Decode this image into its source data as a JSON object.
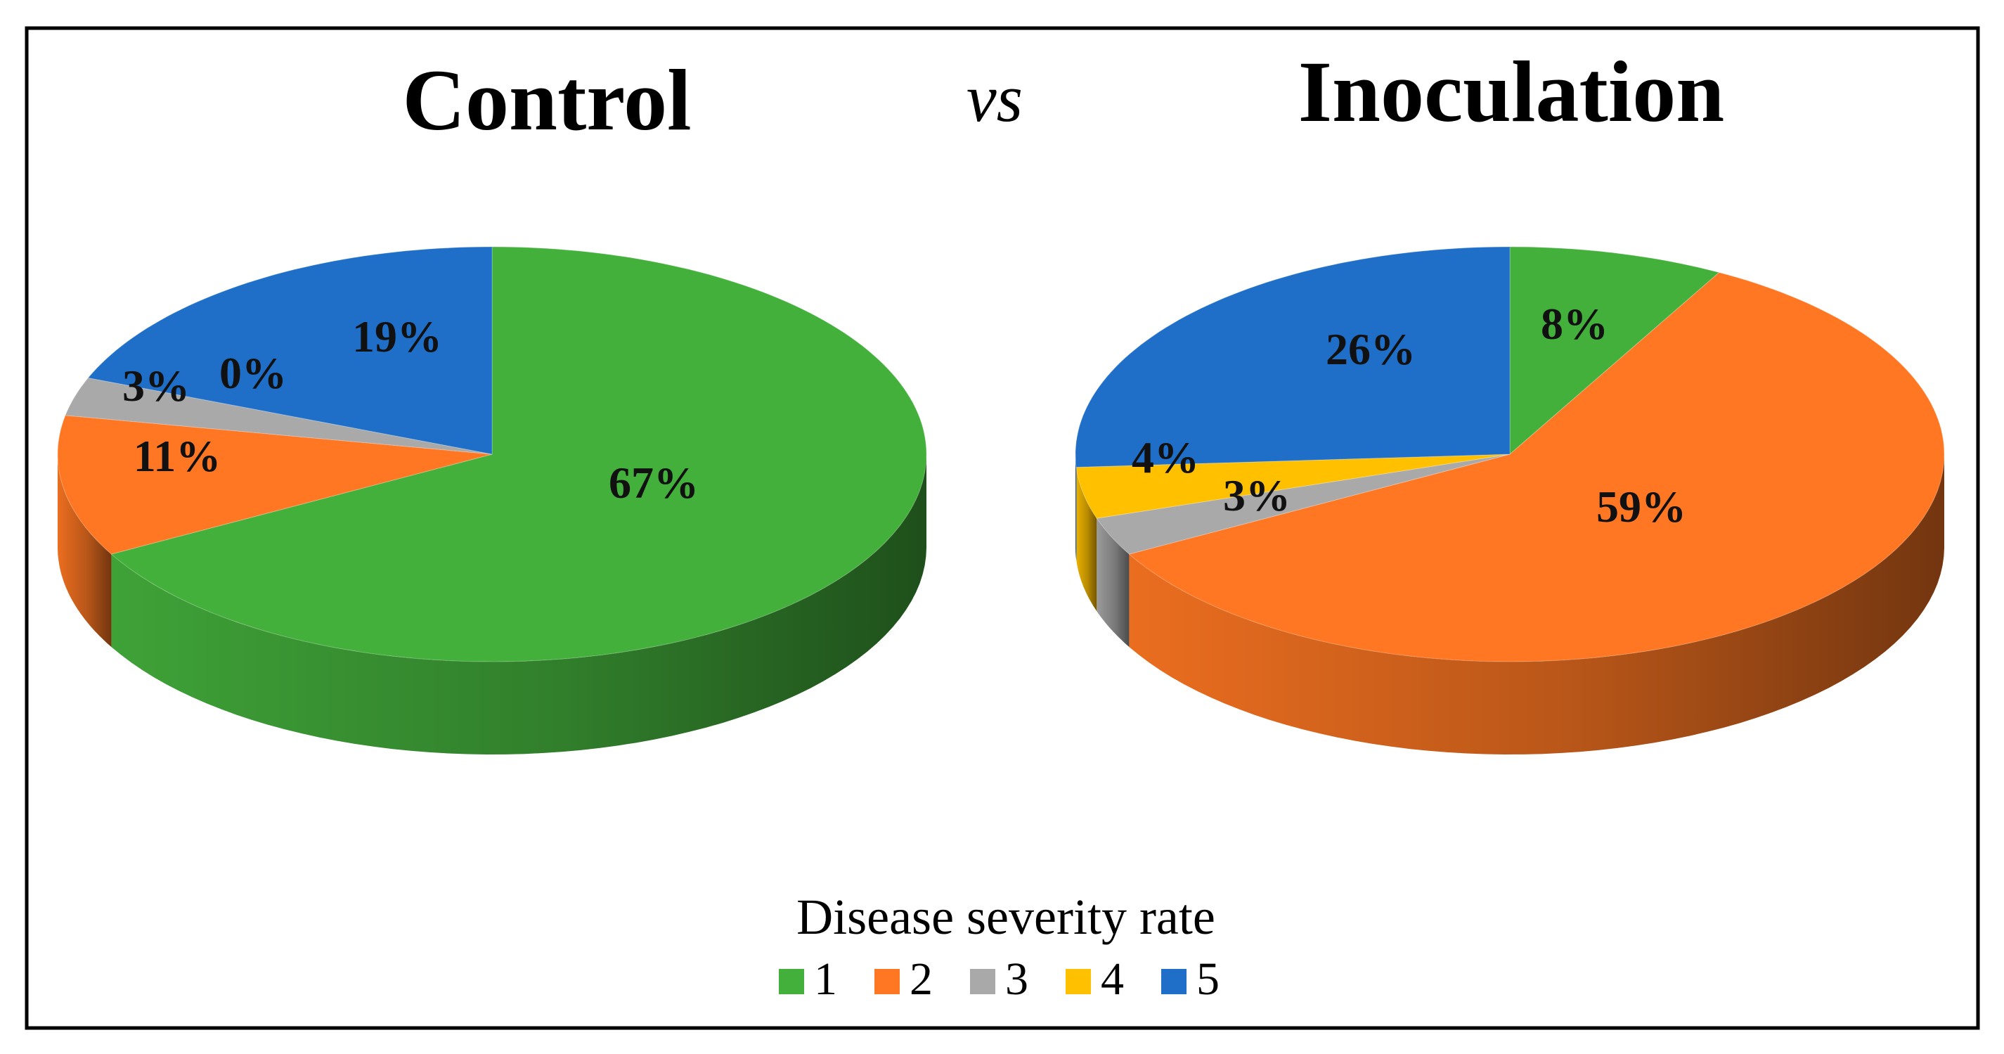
{
  "figure": {
    "vs_text": "vs"
  },
  "chart_data": [
    {
      "type": "pie",
      "title": "Control",
      "categories": [
        "1",
        "2",
        "3",
        "4",
        "5"
      ],
      "values": [
        67,
        11,
        3,
        0,
        19
      ],
      "labels": [
        "67%",
        "11%",
        "3%",
        "0%",
        "19%"
      ],
      "colors": [
        "#44b03c",
        "#ff7722",
        "#a9a9a9",
        "#ffc000",
        "#1f6fc9"
      ]
    },
    {
      "type": "pie",
      "title": "Inoculation",
      "categories": [
        "1",
        "2",
        "3",
        "4",
        "5"
      ],
      "values": [
        8,
        59,
        3,
        4,
        26
      ],
      "labels": [
        "8%",
        "59%",
        "3%",
        "4%",
        "26%"
      ],
      "colors": [
        "#44b03c",
        "#ff7722",
        "#a9a9a9",
        "#ffc000",
        "#1f6fc9"
      ]
    }
  ],
  "legend": {
    "title": "Disease severity rate",
    "entries": [
      {
        "label": "1",
        "color": "#44b03c"
      },
      {
        "label": "2",
        "color": "#ff7722"
      },
      {
        "label": "3",
        "color": "#a9a9a9"
      },
      {
        "label": "4",
        "color": "#ffc000"
      },
      {
        "label": "5",
        "color": "#1f6fc9"
      }
    ]
  }
}
